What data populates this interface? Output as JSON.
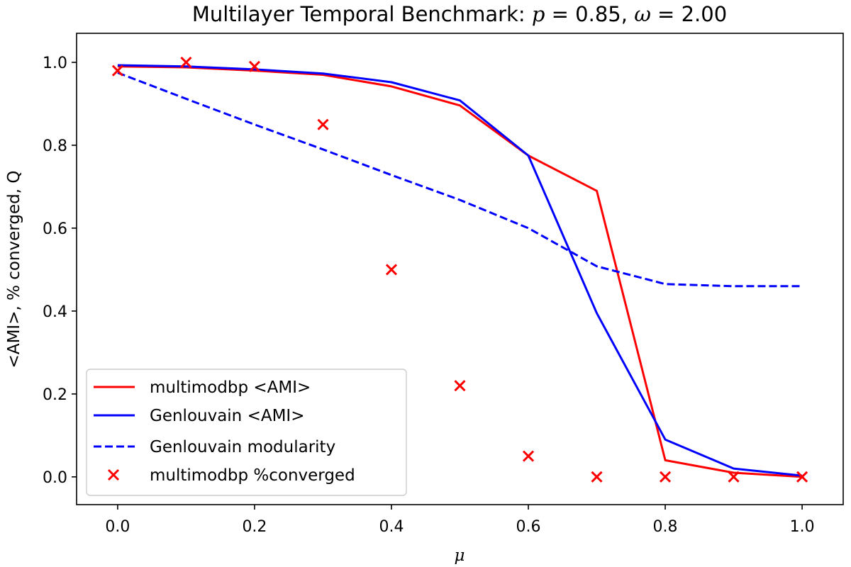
{
  "chart_data": {
    "type": "line",
    "title": {
      "prefix": "Multilayer Temporal Benchmark: ",
      "p_symbol": "p",
      "p_value": " = 0.85, ",
      "omega_symbol": "ω",
      "omega_value": " = 2.00"
    },
    "xlabel": "μ",
    "ylabel": "<AMI>, % converged, Q",
    "xlim": [
      -0.06,
      1.06
    ],
    "ylim": [
      -0.067,
      1.07
    ],
    "xticks": [
      0.0,
      0.2,
      0.4,
      0.6,
      0.8,
      1.0
    ],
    "xtick_labels": [
      "0.0",
      "0.2",
      "0.4",
      "0.6",
      "0.8",
      "1.0"
    ],
    "yticks": [
      0.0,
      0.2,
      0.4,
      0.6,
      0.8,
      1.0
    ],
    "ytick_labels": [
      "0.0",
      "0.2",
      "0.4",
      "0.6",
      "0.8",
      "1.0"
    ],
    "grid": false,
    "legend_position": "lower-left",
    "x": [
      0.0,
      0.1,
      0.2,
      0.3,
      0.4,
      0.5,
      0.6,
      0.7,
      0.8,
      0.9,
      1.0
    ],
    "series": [
      {
        "name": "multimodbp <AMI>",
        "style": "solid",
        "marker": "none",
        "color": "#ff0000",
        "values": [
          0.99,
          0.988,
          0.98,
          0.97,
          0.942,
          0.896,
          0.775,
          0.69,
          0.04,
          0.01,
          0.0
        ]
      },
      {
        "name": "Genlouvain <AMI>",
        "style": "solid",
        "marker": "none",
        "color": "#0000ff",
        "values": [
          0.993,
          0.99,
          0.983,
          0.973,
          0.952,
          0.908,
          0.775,
          0.395,
          0.09,
          0.02,
          0.003
        ]
      },
      {
        "name": "Genlouvain modularity",
        "style": "dashed",
        "marker": "none",
        "color": "#0000ff",
        "values": [
          0.975,
          0.912,
          0.85,
          0.79,
          0.728,
          0.668,
          0.6,
          0.508,
          0.465,
          0.46,
          0.46
        ]
      },
      {
        "name": "multimodbp %converged",
        "style": "none",
        "marker": "x",
        "color": "#ff0000",
        "values": [
          0.98,
          1.0,
          0.99,
          0.85,
          0.5,
          0.22,
          0.05,
          0.0,
          0.0,
          0.0,
          0.0
        ]
      }
    ]
  }
}
